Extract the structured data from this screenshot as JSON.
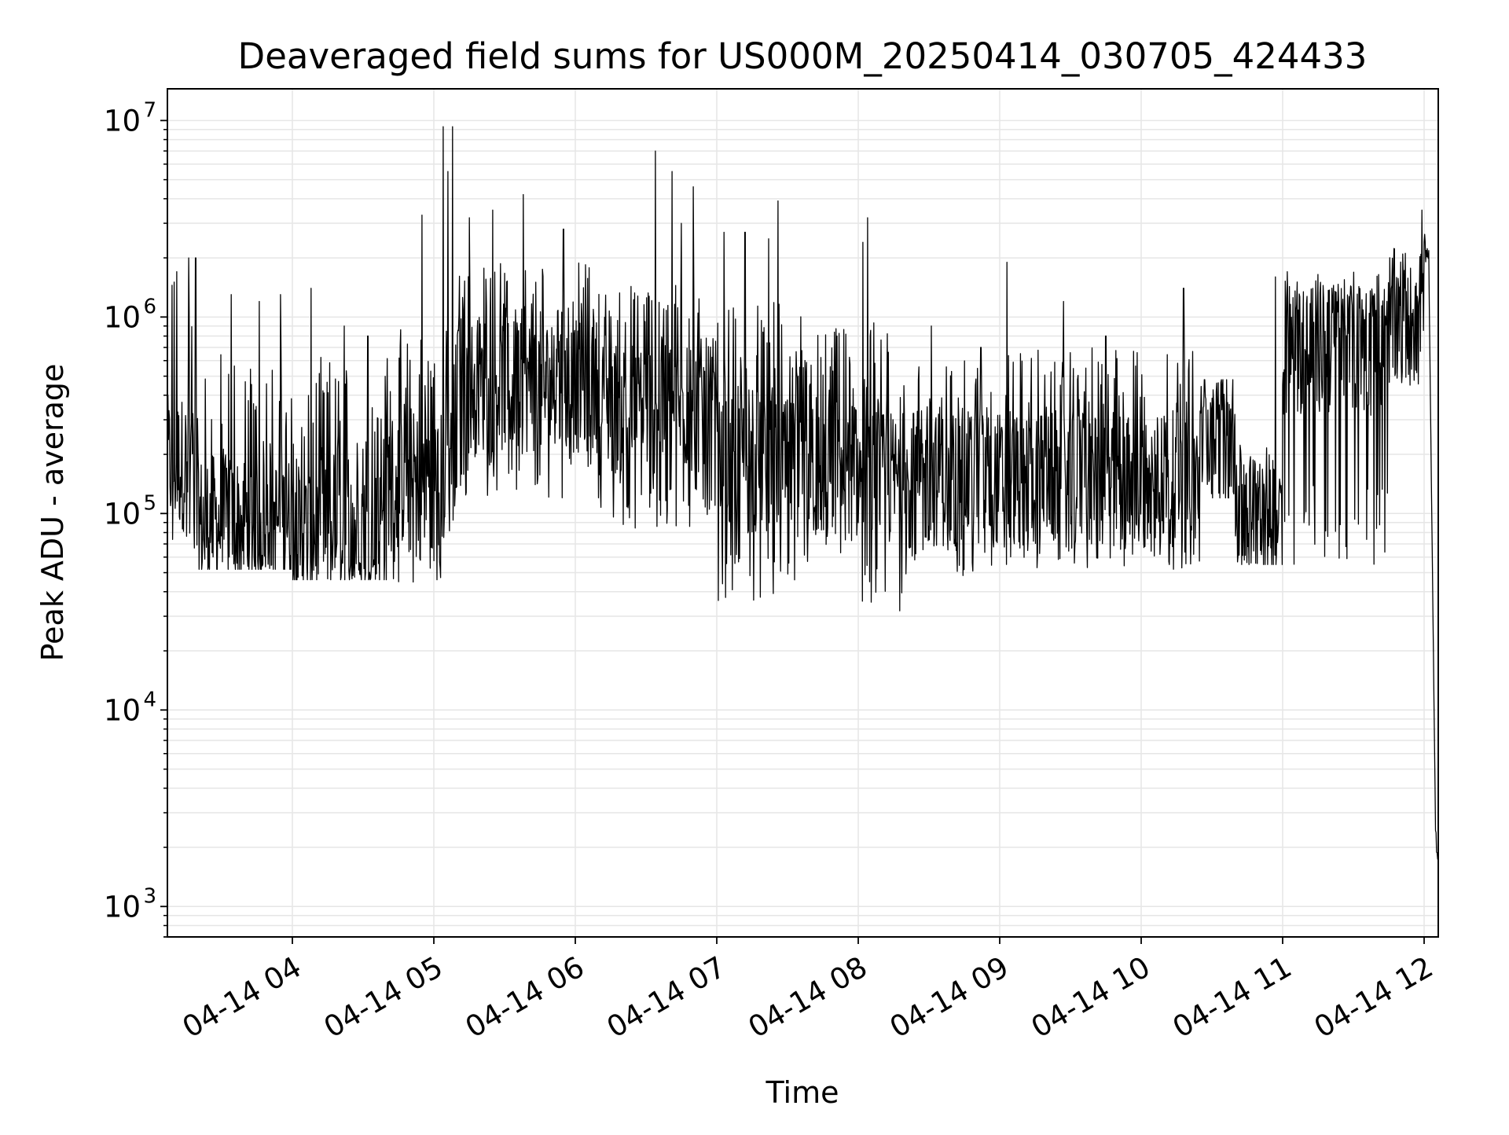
{
  "chart_data": {
    "type": "line",
    "title": "Deaveraged field sums for US000M_20250414_030705_424433",
    "xlabel": "Time",
    "ylabel": "Peak ADU - average",
    "yscale": "log",
    "ylim": [
      700,
      14500000
    ],
    "xlim": [
      "2025-04-14 03:07",
      "2025-04-14 12:06"
    ],
    "grid": true,
    "line_color": "#000000",
    "grid_color": "#e6e6e6",
    "x_ticks": [
      {
        "value": "2025-04-14 04:00",
        "label": "04-14 04"
      },
      {
        "value": "2025-04-14 05:00",
        "label": "04-14 05"
      },
      {
        "value": "2025-04-14 06:00",
        "label": "04-14 06"
      },
      {
        "value": "2025-04-14 07:00",
        "label": "04-14 07"
      },
      {
        "value": "2025-04-14 08:00",
        "label": "04-14 08"
      },
      {
        "value": "2025-04-14 09:00",
        "label": "04-14 09"
      },
      {
        "value": "2025-04-14 10:00",
        "label": "04-14 10"
      },
      {
        "value": "2025-04-14 11:00",
        "label": "04-14 11"
      },
      {
        "value": "2025-04-14 12:00",
        "label": "04-14 12"
      }
    ],
    "y_ticks": [
      {
        "value": 1000,
        "base": "10",
        "exp": "3"
      },
      {
        "value": 10000,
        "base": "10",
        "exp": "4"
      },
      {
        "value": 100000,
        "base": "10",
        "exp": "5"
      },
      {
        "value": 1000000,
        "base": "10",
        "exp": "6"
      },
      {
        "value": 10000000,
        "base": "10",
        "exp": "7"
      }
    ],
    "series": [
      {
        "segments": [
          {
            "from": "2025-04-14 03:07",
            "to": "2025-04-14 03:20",
            "low": 60000,
            "mid": 180000,
            "high": 1800000,
            "peaks": [
              [
                "2025-04-14 03:11",
                1700000
              ],
              [
                "2025-04-14 03:16",
                2000000
              ],
              [
                "2025-04-14 03:19",
                2000000
              ]
            ]
          },
          {
            "from": "2025-04-14 03:20",
            "to": "2025-04-14 04:00",
            "low": 52000,
            "mid": 90000,
            "high": 700000,
            "peaks": [
              [
                "2025-04-14 03:34",
                1300000
              ],
              [
                "2025-04-14 03:46",
                1200000
              ],
              [
                "2025-04-14 03:55",
                1300000
              ]
            ]
          },
          {
            "from": "2025-04-14 04:00",
            "to": "2025-04-14 04:40",
            "low": 46000,
            "mid": 80000,
            "high": 650000,
            "peaks": [
              [
                "2025-04-14 04:08",
                1400000
              ],
              [
                "2025-04-14 04:22",
                900000
              ],
              [
                "2025-04-14 04:32",
                800000
              ]
            ]
          },
          {
            "from": "2025-04-14 04:40",
            "to": "2025-04-14 05:10",
            "low": 44000,
            "mid": 150000,
            "high": 900000,
            "peaks": [
              [
                "2025-04-14 04:55",
                3300000
              ],
              [
                "2025-04-14 05:04",
                9300000
              ],
              [
                "2025-04-14 05:08",
                9300000
              ],
              [
                "2025-04-14 05:06",
                5500000
              ]
            ]
          },
          {
            "from": "2025-04-14 05:10",
            "to": "2025-04-14 06:10",
            "low": 120000,
            "mid": 450000,
            "high": 1900000,
            "peaks": [
              [
                "2025-04-14 05:15",
                3200000
              ],
              [
                "2025-04-14 05:25",
                3500000
              ],
              [
                "2025-04-14 05:38",
                4200000
              ],
              [
                "2025-04-14 05:55",
                2800000
              ]
            ]
          },
          {
            "from": "2025-04-14 06:10",
            "to": "2025-04-14 07:00",
            "low": 80000,
            "mid": 350000,
            "high": 1500000,
            "peaks": [
              [
                "2025-04-14 06:34",
                7000000
              ],
              [
                "2025-04-14 06:41",
                5500000
              ],
              [
                "2025-04-14 06:50",
                4600000
              ],
              [
                "2025-04-14 06:45",
                3000000
              ]
            ]
          },
          {
            "from": "2025-04-14 07:00",
            "to": "2025-04-14 07:40",
            "low": 36000,
            "mid": 170000,
            "high": 1200000,
            "peaks": [
              [
                "2025-04-14 07:03",
                2700000
              ],
              [
                "2025-04-14 07:12",
                2700000
              ],
              [
                "2025-04-14 07:26",
                3900000
              ],
              [
                "2025-04-14 07:22",
                2500000
              ]
            ]
          },
          {
            "from": "2025-04-14 07:40",
            "to": "2025-04-14 08:00",
            "low": 60000,
            "mid": 160000,
            "high": 900000,
            "peaks": [
              [
                "2025-04-14 07:51",
                800000
              ]
            ]
          },
          {
            "from": "2025-04-14 08:00",
            "to": "2025-04-14 08:20",
            "low": 30000,
            "mid": 150000,
            "high": 1000000,
            "peaks": [
              [
                "2025-04-14 08:02",
                2400000
              ],
              [
                "2025-04-14 08:04",
                3200000
              ]
            ]
          },
          {
            "from": "2025-04-14 08:20",
            "to": "2025-04-14 09:00",
            "low": 48000,
            "mid": 150000,
            "high": 600000,
            "peaks": [
              [
                "2025-04-14 08:31",
                900000
              ],
              [
                "2025-04-14 08:52",
                700000
              ]
            ]
          },
          {
            "from": "2025-04-14 09:00",
            "to": "2025-04-14 10:25",
            "low": 52000,
            "mid": 150000,
            "high": 700000,
            "peaks": [
              [
                "2025-04-14 09:03",
                1900000
              ],
              [
                "2025-04-14 09:27",
                1200000
              ],
              [
                "2025-04-14 09:45",
                800000
              ],
              [
                "2025-04-14 10:18",
                1400000
              ]
            ]
          },
          {
            "from": "2025-04-14 10:25",
            "to": "2025-04-14 10:40",
            "low": 120000,
            "mid": 250000,
            "high": 480000,
            "peaks": []
          },
          {
            "from": "2025-04-14 10:40",
            "to": "2025-04-14 11:00",
            "low": 55000,
            "mid": 100000,
            "high": 200000,
            "peaks": [
              [
                "2025-04-14 10:57",
                1600000
              ]
            ]
          },
          {
            "from": "2025-04-14 11:00",
            "to": "2025-04-14 11:45",
            "low": 55000,
            "mid": 700000,
            "high": 1700000,
            "peaks": [
              [
                "2025-04-14 11:02",
                1700000
              ]
            ]
          },
          {
            "from": "2025-04-14 11:45",
            "to": "2025-04-14 12:00",
            "low": 450000,
            "mid": 1000000,
            "high": 1800000,
            "peaks": [
              [
                "2025-04-14 11:59",
                3500000
              ]
            ]
          },
          {
            "from": "2025-04-14 12:00",
            "to": "2025-04-14 12:06",
            "low": 1100,
            "mid": 1500,
            "high": 2500000,
            "peaks": [
              [
                "2025-04-14 12:00",
                2400000
              ],
              [
                "2025-04-14 12:05",
                1100
              ]
            ]
          }
        ]
      }
    ]
  }
}
